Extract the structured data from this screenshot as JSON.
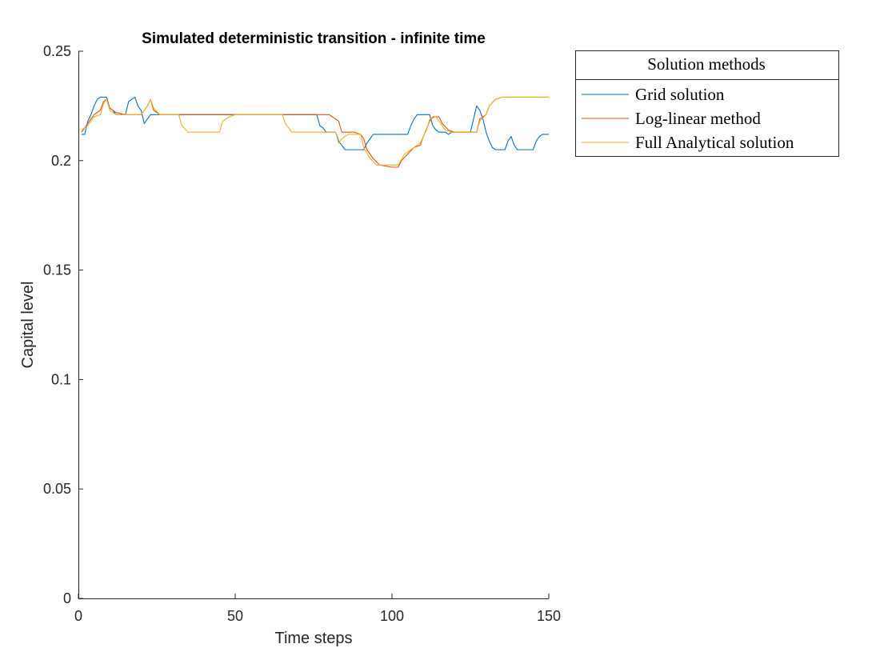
{
  "chart_data": {
    "type": "line",
    "title": "Simulated deterministic transition - infinite time",
    "xlabel": "Time steps",
    "ylabel": "Capital level",
    "xlim": [
      0,
      150
    ],
    "ylim": [
      0,
      0.25
    ],
    "xticks": [
      "0",
      "50",
      "100",
      "150"
    ],
    "yticks": [
      "0",
      "0.05",
      "0.1",
      "0.15",
      "0.2",
      "0.25"
    ],
    "grid": false,
    "legend": {
      "title": "Solution methods",
      "placement": "outside-top-right",
      "entries": [
        "Grid solution",
        "Log-linear method",
        "Full Analytical solution"
      ]
    },
    "series": [
      {
        "name": "Grid solution",
        "color": "#0072BD",
        "points": [
          [
            1,
            0.212
          ],
          [
            2,
            0.212
          ],
          [
            3,
            0.218
          ],
          [
            4,
            0.221
          ],
          [
            5,
            0.225
          ],
          [
            6,
            0.228
          ],
          [
            7,
            0.229
          ],
          [
            8,
            0.229
          ],
          [
            9,
            0.229
          ],
          [
            10,
            0.224
          ],
          [
            11,
            0.223
          ],
          [
            12,
            0.221
          ],
          [
            15,
            0.221
          ],
          [
            16,
            0.227
          ],
          [
            17,
            0.228
          ],
          [
            18,
            0.229
          ],
          [
            19,
            0.225
          ],
          [
            20,
            0.223
          ],
          [
            21,
            0.217
          ],
          [
            22,
            0.219
          ],
          [
            23,
            0.221
          ],
          [
            75,
            0.221
          ],
          [
            76,
            0.221
          ],
          [
            77,
            0.216
          ],
          [
            78,
            0.215
          ],
          [
            79,
            0.213
          ],
          [
            82,
            0.213
          ],
          [
            83,
            0.209
          ],
          [
            84,
            0.207
          ],
          [
            85,
            0.205
          ],
          [
            91,
            0.205
          ],
          [
            92,
            0.208
          ],
          [
            93,
            0.21
          ],
          [
            94,
            0.212
          ],
          [
            105,
            0.212
          ],
          [
            106,
            0.216
          ],
          [
            107,
            0.219
          ],
          [
            108,
            0.221
          ],
          [
            112,
            0.221
          ],
          [
            113,
            0.216
          ],
          [
            114,
            0.214
          ],
          [
            115,
            0.213
          ],
          [
            117,
            0.213
          ],
          [
            118,
            0.212
          ],
          [
            119,
            0.213
          ],
          [
            125,
            0.213
          ],
          [
            126,
            0.219
          ],
          [
            127,
            0.225
          ],
          [
            128,
            0.223
          ],
          [
            129,
            0.219
          ],
          [
            130,
            0.213
          ],
          [
            131,
            0.209
          ],
          [
            132,
            0.206
          ],
          [
            133,
            0.205
          ],
          [
            136,
            0.205
          ],
          [
            137,
            0.209
          ],
          [
            138,
            0.211
          ],
          [
            139,
            0.207
          ],
          [
            140,
            0.205
          ],
          [
            145,
            0.205
          ],
          [
            146,
            0.209
          ],
          [
            147,
            0.211
          ],
          [
            148,
            0.212
          ],
          [
            150,
            0.212
          ]
        ]
      },
      {
        "name": "Log-linear method",
        "color": "#D95319",
        "points": [
          [
            1,
            0.213
          ],
          [
            3,
            0.217
          ],
          [
            5,
            0.221
          ],
          [
            7,
            0.223
          ],
          [
            8,
            0.227
          ],
          [
            9,
            0.228
          ],
          [
            10,
            0.224
          ],
          [
            12,
            0.222
          ],
          [
            15,
            0.221
          ],
          [
            20,
            0.221
          ],
          [
            22,
            0.225
          ],
          [
            23,
            0.228
          ],
          [
            24,
            0.223
          ],
          [
            26,
            0.221
          ],
          [
            80,
            0.221
          ],
          [
            83,
            0.218
          ],
          [
            84,
            0.213
          ],
          [
            88,
            0.213
          ],
          [
            90,
            0.212
          ],
          [
            91,
            0.21
          ],
          [
            92,
            0.205
          ],
          [
            94,
            0.201
          ],
          [
            96,
            0.198
          ],
          [
            100,
            0.197
          ],
          [
            102,
            0.197
          ],
          [
            103,
            0.2
          ],
          [
            105,
            0.203
          ],
          [
            107,
            0.206
          ],
          [
            109,
            0.207
          ],
          [
            110,
            0.211
          ],
          [
            112,
            0.218
          ],
          [
            113,
            0.22
          ],
          [
            115,
            0.22
          ],
          [
            116,
            0.217
          ],
          [
            118,
            0.214
          ],
          [
            120,
            0.213
          ],
          [
            127,
            0.213
          ],
          [
            128,
            0.219
          ],
          [
            130,
            0.221
          ],
          [
            131,
            0.225
          ],
          [
            133,
            0.228
          ],
          [
            135,
            0.229
          ],
          [
            150,
            0.229
          ]
        ]
      },
      {
        "name": "Full Analytical solution",
        "color": "#EDB120",
        "points": [
          [
            1,
            0.214
          ],
          [
            3,
            0.216
          ],
          [
            5,
            0.22
          ],
          [
            7,
            0.221
          ],
          [
            8,
            0.226
          ],
          [
            9,
            0.228
          ],
          [
            10,
            0.223
          ],
          [
            12,
            0.221
          ],
          [
            20,
            0.221
          ],
          [
            22,
            0.225
          ],
          [
            23,
            0.228
          ],
          [
            24,
            0.224
          ],
          [
            26,
            0.221
          ],
          [
            32,
            0.221
          ],
          [
            33,
            0.216
          ],
          [
            35,
            0.213
          ],
          [
            45,
            0.213
          ],
          [
            46,
            0.218
          ],
          [
            48,
            0.22
          ],
          [
            50,
            0.221
          ],
          [
            65,
            0.221
          ],
          [
            66,
            0.217
          ],
          [
            68,
            0.213
          ],
          [
            82,
            0.213
          ],
          [
            83,
            0.208
          ],
          [
            84,
            0.21
          ],
          [
            86,
            0.212
          ],
          [
            90,
            0.212
          ],
          [
            91,
            0.206
          ],
          [
            93,
            0.201
          ],
          [
            95,
            0.198
          ],
          [
            102,
            0.198
          ],
          [
            104,
            0.203
          ],
          [
            107,
            0.206
          ],
          [
            109,
            0.208
          ],
          [
            111,
            0.214
          ],
          [
            112,
            0.219
          ],
          [
            114,
            0.22
          ],
          [
            115,
            0.218
          ],
          [
            117,
            0.214
          ],
          [
            119,
            0.213
          ],
          [
            127,
            0.213
          ],
          [
            128,
            0.218
          ],
          [
            130,
            0.221
          ],
          [
            131,
            0.225
          ],
          [
            133,
            0.228
          ],
          [
            135,
            0.229
          ],
          [
            150,
            0.229
          ]
        ]
      }
    ]
  }
}
